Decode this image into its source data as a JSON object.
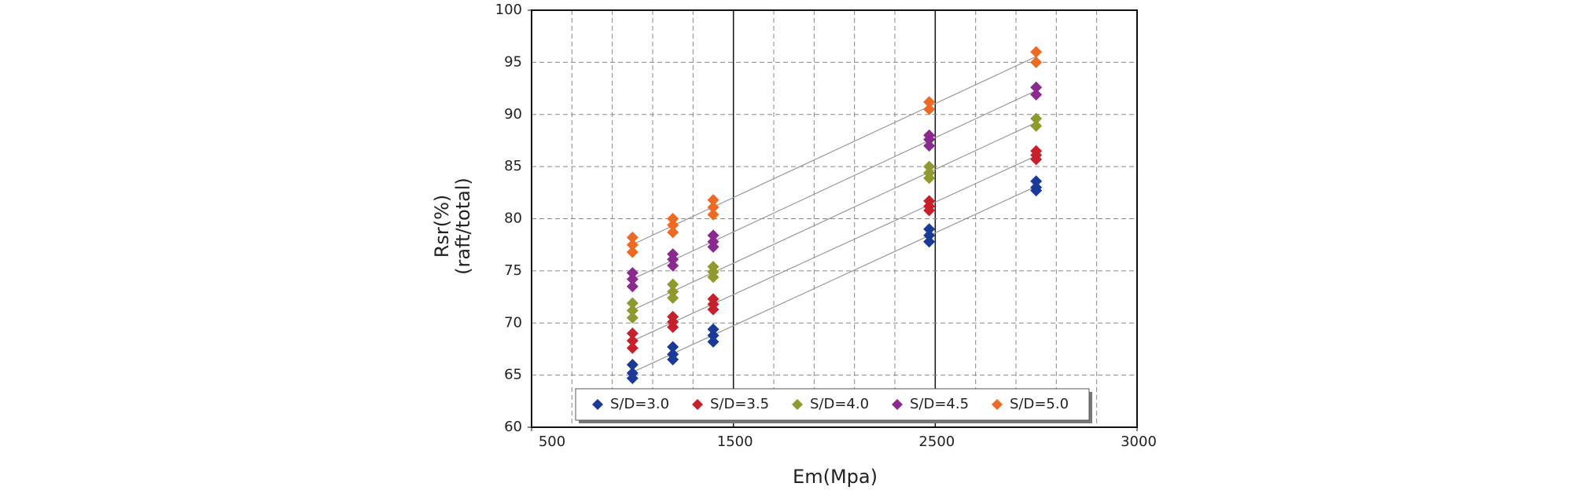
{
  "chart_data": {
    "type": "scatter",
    "xlabel": "Em(Mpa)",
    "ylabel": [
      "Rsr(%)",
      "(raft/total)"
    ],
    "xlim": [
      500,
      3000
    ],
    "xticks": [
      500,
      1500,
      2500,
      3000
    ],
    "ylim": [
      60,
      100
    ],
    "yticks": [
      60,
      65,
      70,
      75,
      80,
      85,
      90,
      95,
      100
    ],
    "grid": true,
    "trendlines": true,
    "legend": "lower center",
    "series": [
      {
        "name": "S/D=3.0",
        "color": "#1a3a9a",
        "x": [
          1000,
          1000,
          1000,
          1200,
          1200,
          1200,
          1400,
          1400,
          1400,
          2470,
          2470,
          2470,
          2750,
          2750,
          2750
        ],
        "values": [
          66.0,
          65.2,
          64.7,
          67.7,
          67.0,
          66.5,
          69.4,
          68.8,
          68.2,
          79.0,
          78.4,
          77.8,
          83.6,
          83.0,
          82.7
        ]
      },
      {
        "name": "S/D=3.5",
        "color": "#c8202a",
        "x": [
          1000,
          1000,
          1000,
          1200,
          1200,
          1200,
          1400,
          1400,
          1400,
          2470,
          2470,
          2470,
          2750,
          2750,
          2750
        ],
        "values": [
          69.0,
          68.3,
          67.6,
          70.6,
          70.1,
          69.6,
          72.3,
          71.8,
          71.3,
          81.7,
          81.2,
          80.8,
          86.5,
          86.1,
          85.7
        ]
      },
      {
        "name": "S/D=4.0",
        "color": "#8f9a2e",
        "x": [
          1000,
          1000,
          1000,
          1200,
          1200,
          1200,
          1400,
          1400,
          1400,
          2470,
          2470,
          2470,
          2750,
          2750
        ],
        "values": [
          71.9,
          71.2,
          70.5,
          73.7,
          73.0,
          72.4,
          75.4,
          74.9,
          74.4,
          85.0,
          84.4,
          83.9,
          89.6,
          88.9
        ]
      },
      {
        "name": "S/D=4.5",
        "color": "#8b2a8e",
        "x": [
          1000,
          1000,
          1000,
          1200,
          1200,
          1200,
          1400,
          1400,
          1400,
          2470,
          2470,
          2470,
          2750,
          2750
        ],
        "values": [
          74.8,
          74.2,
          73.5,
          76.6,
          76.1,
          75.5,
          78.4,
          77.8,
          77.3,
          88.0,
          87.6,
          87.0,
          92.6,
          91.9
        ]
      },
      {
        "name": "S/D=5.0",
        "color": "#ee6a22",
        "x": [
          1000,
          1000,
          1000,
          1200,
          1200,
          1200,
          1400,
          1400,
          1400,
          2470,
          2470,
          2750,
          2750
        ],
        "values": [
          78.2,
          77.5,
          76.8,
          80.0,
          79.4,
          78.7,
          81.8,
          81.1,
          80.4,
          91.2,
          90.5,
          96.0,
          95.0
        ]
      }
    ]
  }
}
